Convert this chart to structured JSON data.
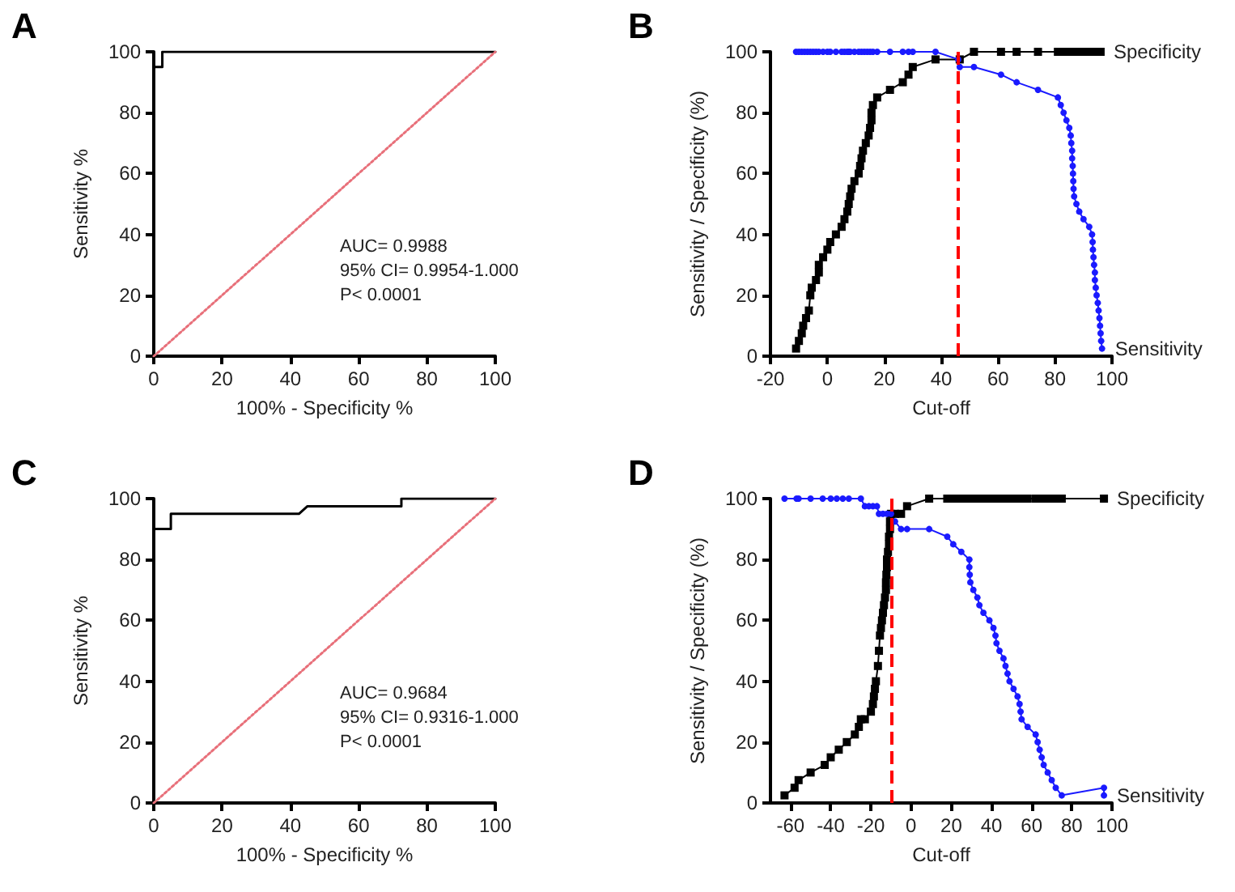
{
  "chart_data": [
    {
      "type": "line",
      "title": "A",
      "xlabel": "100% - Specificity %",
      "ylabel": "Sensitivity %",
      "xlim": [
        0,
        100
      ],
      "xticks": [
        0,
        20,
        40,
        60,
        80,
        100
      ],
      "ylim": [
        0,
        100
      ],
      "yticks": [
        0,
        20,
        40,
        60,
        80,
        100
      ],
      "grid": false,
      "legend": false,
      "annotations": [
        "AUC= 0.9988",
        "95% CI= 0.9954-1.000",
        "P< 0.0001"
      ],
      "series": [
        {
          "color": "#000000",
          "marker": "none",
          "line_style": "solid",
          "x": [
            0,
            0,
            2.5,
            2.5,
            100
          ],
          "values": [
            0,
            95,
            95,
            100,
            100
          ]
        },
        {
          "color": "#e8707a",
          "marker": "none",
          "line_style": "dotted",
          "x": [
            0,
            100
          ],
          "values": [
            0,
            100
          ]
        }
      ]
    },
    {
      "type": "line",
      "title": "B",
      "xlabel": "Cut-off",
      "ylabel": "Sensitivity / Specificity (%)",
      "xlim": [
        -20,
        100
      ],
      "xticks": [
        -20,
        0,
        20,
        40,
        60,
        80,
        100
      ],
      "ylim": [
        0,
        100
      ],
      "yticks": [
        0,
        20,
        40,
        60,
        80,
        100
      ],
      "grid": false,
      "legend": false,
      "ref_lines": [
        {
          "axis": "x",
          "value": 46,
          "color": "#ff0000",
          "line_style": "dashed"
        }
      ],
      "series": [
        {
          "name": "Specificity",
          "color": "#000000",
          "marker": "square",
          "line_style": "solid",
          "x": [
            -11,
            -10,
            -9,
            -8.5,
            -7.5,
            -6.5,
            -6,
            -5.5,
            -4,
            -3,
            -3,
            -1.5,
            0,
            1,
            3,
            5,
            6,
            7,
            7.5,
            8,
            8.5,
            9.5,
            11,
            11.5,
            12,
            12.5,
            13.5,
            14.5,
            15,
            15.5,
            15.5,
            16,
            17.5,
            22,
            26.5,
            28.5,
            30,
            38,
            46.5,
            51.5,
            61,
            66.5,
            74,
            81,
            82,
            84,
            86,
            88,
            90,
            92,
            94,
            96
          ],
          "values": [
            2.5,
            5,
            7.5,
            10,
            12.5,
            15,
            20,
            22.5,
            25,
            27.5,
            30,
            32.5,
            35,
            37.5,
            40,
            42.5,
            45,
            47.5,
            50,
            52.5,
            55,
            57.5,
            60,
            62.5,
            65,
            67.5,
            70,
            72.5,
            75,
            77.5,
            80,
            82.5,
            85,
            87.5,
            90,
            92.5,
            95,
            97.5,
            97.5,
            100,
            100,
            100,
            100,
            100,
            100,
            100,
            100,
            100,
            100,
            100,
            100,
            100
          ]
        },
        {
          "name": "Sensitivity",
          "color": "#1a1aff",
          "marker": "circle",
          "line_style": "solid",
          "x": [
            -11,
            -10,
            -9,
            -8,
            -7,
            -6,
            -5,
            -4,
            -3,
            -1.5,
            0,
            1,
            3,
            5,
            6,
            7,
            7.5,
            8,
            9.5,
            11,
            12,
            13,
            14,
            15,
            16,
            17.5,
            22,
            26.5,
            28.5,
            30,
            38,
            46,
            46.5,
            51.5,
            61,
            66.5,
            74,
            81,
            82,
            83,
            84,
            85,
            85.5,
            85.7,
            86,
            86,
            86.2,
            86.3,
            86.4,
            86.5,
            86.7,
            87.5,
            88.5,
            90,
            92,
            93,
            93.2,
            93.3,
            93.5,
            93.7,
            94,
            94,
            94.3,
            94.6,
            95,
            95.3,
            95.6,
            95.8,
            96,
            96.2,
            96.5
          ],
          "values": [
            100,
            100,
            100,
            100,
            100,
            100,
            100,
            100,
            100,
            100,
            100,
            100,
            100,
            100,
            100,
            100,
            100,
            100,
            100,
            100,
            100,
            100,
            100,
            100,
            100,
            100,
            100,
            100,
            100,
            100,
            100,
            97.5,
            95,
            95,
            92.5,
            90,
            87.5,
            85,
            82.5,
            80,
            77.5,
            75,
            72.5,
            70,
            67.5,
            65,
            62.5,
            60,
            57.5,
            55,
            52.5,
            50,
            47.5,
            45,
            42.5,
            40,
            37.5,
            35,
            32.5,
            30,
            27.5,
            25,
            22.5,
            20,
            17.5,
            15,
            12.5,
            10,
            7.5,
            5,
            2.5
          ]
        }
      ]
    },
    {
      "type": "line",
      "title": "C",
      "xlabel": "100% - Specificity %",
      "ylabel": "Sensitivity %",
      "xlim": [
        0,
        100
      ],
      "xticks": [
        0,
        20,
        40,
        60,
        80,
        100
      ],
      "ylim": [
        0,
        100
      ],
      "yticks": [
        0,
        20,
        40,
        60,
        80,
        100
      ],
      "grid": false,
      "legend": false,
      "annotations": [
        "AUC= 0.9684",
        "95% CI= 0.9316-1.000",
        "P< 0.0001"
      ],
      "series": [
        {
          "color": "#000000",
          "marker": "none",
          "line_style": "solid",
          "x": [
            0,
            0,
            5,
            5,
            42.5,
            45,
            72.5,
            72.5,
            100
          ],
          "values": [
            0,
            90,
            90,
            95,
            95,
            97.5,
            97.5,
            100,
            100
          ]
        },
        {
          "color": "#e8707a",
          "marker": "none",
          "line_style": "dotted",
          "x": [
            0,
            100
          ],
          "values": [
            0,
            100
          ]
        }
      ]
    },
    {
      "type": "line",
      "title": "D",
      "xlabel": "Cut-off",
      "ylabel": "Sensitivity / Specificity (%)",
      "xlim": [
        -70,
        100
      ],
      "xticks": [
        -60,
        -40,
        -20,
        0,
        20,
        40,
        60,
        80,
        100
      ],
      "ylim": [
        0,
        100
      ],
      "yticks": [
        0,
        20,
        40,
        60,
        80,
        100
      ],
      "grid": false,
      "legend": false,
      "ref_lines": [
        {
          "axis": "x",
          "value": -10,
          "color": "#ff0000",
          "line_style": "dashed"
        }
      ],
      "series": [
        {
          "name": "Specificity",
          "color": "#000000",
          "marker": "square",
          "line_style": "solid",
          "x": [
            -63,
            -58,
            -56,
            -50,
            -43,
            -40,
            -36,
            -32,
            -28,
            -26,
            -25,
            -23,
            -20,
            -19,
            -18.5,
            -18,
            -17.5,
            -16.5,
            -16,
            -15.5,
            -15,
            -14.5,
            -14,
            -13.5,
            -13,
            -12.5,
            -12.5,
            -12.3,
            -12,
            -12,
            -11.5,
            -11,
            -11,
            -10.5,
            -10.5,
            -10,
            -8,
            -5,
            -2,
            9,
            18,
            20,
            22,
            25,
            28,
            30,
            32,
            35,
            38,
            40,
            43,
            46,
            48,
            50,
            52,
            55,
            58,
            62,
            64,
            66,
            68,
            70,
            72,
            75,
            96
          ],
          "values": [
            2.5,
            5,
            7.5,
            10,
            12.5,
            15,
            17.5,
            20,
            22.5,
            25,
            27.5,
            27.5,
            30,
            32.5,
            35,
            37.5,
            40,
            45,
            50,
            55,
            57.5,
            60,
            62.5,
            65,
            67.5,
            70,
            72.5,
            75,
            77.5,
            80,
            82.5,
            85,
            87.5,
            90,
            92.5,
            95,
            95,
            95,
            97.5,
            100,
            100,
            100,
            100,
            100,
            100,
            100,
            100,
            100,
            100,
            100,
            100,
            100,
            100,
            100,
            100,
            100,
            100,
            100,
            100,
            100,
            100,
            100,
            100,
            100,
            100
          ]
        },
        {
          "name": "Sensitivity",
          "color": "#1a1aff",
          "marker": "circle",
          "line_style": "solid",
          "x": [
            -63,
            -57,
            -56,
            -50,
            -44,
            -40,
            -37,
            -34,
            -31,
            -25,
            -23,
            -21,
            -19,
            -17,
            -16,
            -14,
            -12,
            -10,
            -8,
            -5,
            -2,
            9,
            18,
            21,
            25,
            29,
            29,
            29.2,
            29.5,
            31,
            33,
            34,
            36,
            39,
            41,
            42,
            42.5,
            44,
            46,
            47,
            48,
            49,
            51,
            53,
            54,
            54.5,
            55,
            58,
            62,
            63,
            64,
            65,
            66,
            68,
            70,
            72,
            75,
            96,
            96
          ],
          "values": [
            100,
            100,
            100,
            100,
            100,
            100,
            100,
            100,
            100,
            100,
            97.5,
            97.5,
            97.5,
            97.5,
            95,
            95,
            95,
            95,
            92.5,
            90,
            90,
            90,
            87.5,
            85,
            82.5,
            80,
            77.5,
            75,
            72.5,
            70,
            67.5,
            65,
            62.5,
            60,
            57.5,
            55,
            52.5,
            50,
            47.5,
            45,
            42.5,
            40,
            37.5,
            35,
            32.5,
            30,
            27.5,
            25,
            22.5,
            20,
            17.5,
            15,
            12.5,
            10,
            7.5,
            5,
            2.5,
            5,
            2.5
          ]
        }
      ]
    }
  ]
}
